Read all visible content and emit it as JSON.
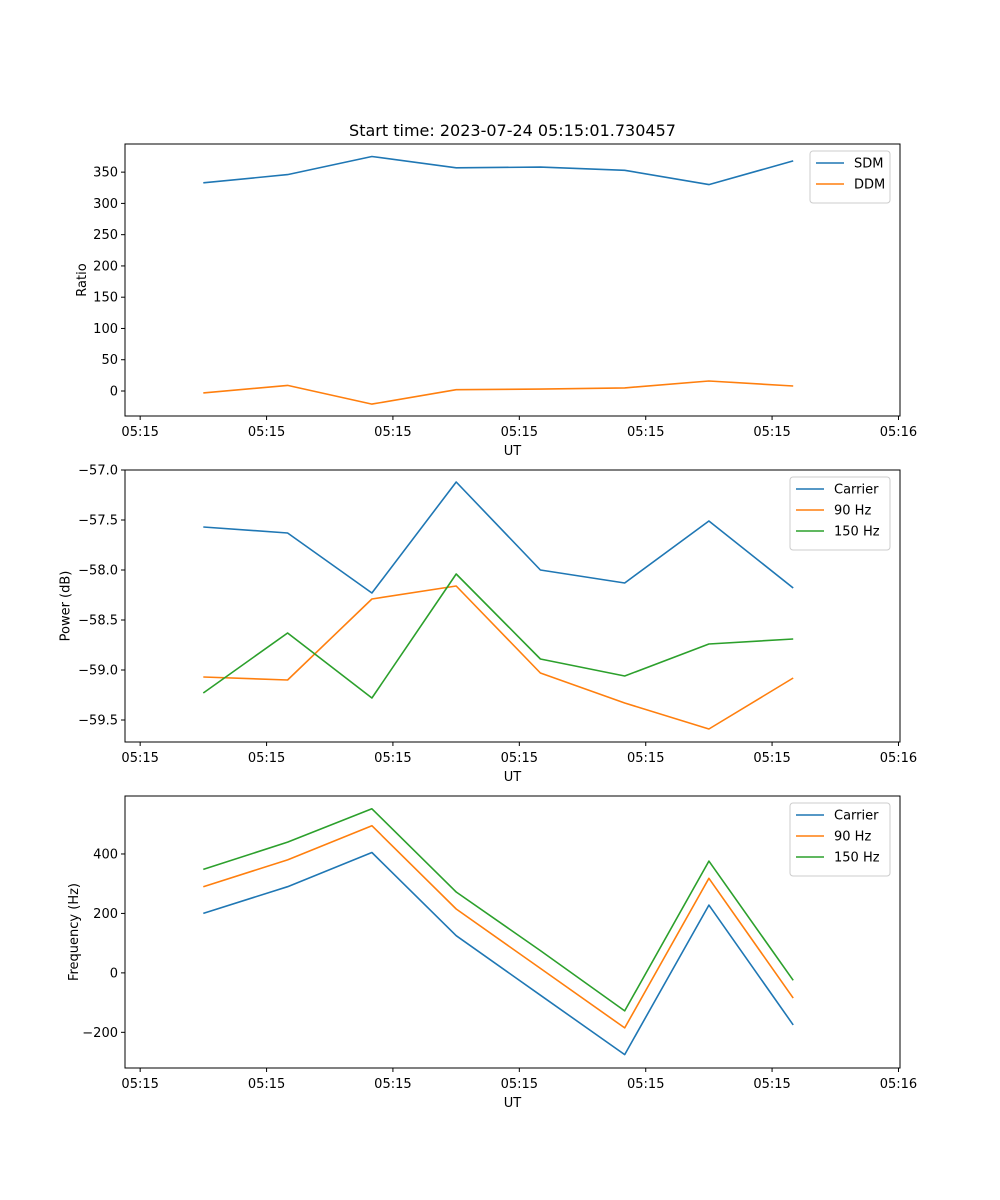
{
  "figure_title": "Start time: 2023-07-24 05:15:01.730457",
  "chart_data": [
    {
      "type": "line",
      "xlabel": "UT",
      "ylabel": "Ratio",
      "xlim": [
        0,
        1
      ],
      "x_ticks": [
        {
          "value": 0.0,
          "label": "05:15"
        },
        {
          "value": 0.1667,
          "label": "05:15"
        },
        {
          "value": 0.3333,
          "label": "05:15"
        },
        {
          "value": 0.5,
          "label": "05:15"
        },
        {
          "value": 0.6667,
          "label": "05:15"
        },
        {
          "value": 0.8333,
          "label": "05:15"
        },
        {
          "value": 1.0,
          "label": "05:16"
        }
      ],
      "x": [
        0.0833,
        0.1944,
        0.3056,
        0.4167,
        0.5278,
        0.6389,
        0.75,
        0.8611
      ],
      "ylim": [
        -40,
        395
      ],
      "y_ticks": [
        {
          "value": 0,
          "label": "0"
        },
        {
          "value": 50,
          "label": "50"
        },
        {
          "value": 100,
          "label": "100"
        },
        {
          "value": 150,
          "label": "150"
        },
        {
          "value": 200,
          "label": "200"
        },
        {
          "value": 250,
          "label": "250"
        },
        {
          "value": 300,
          "label": "300"
        },
        {
          "value": 350,
          "label": "350"
        }
      ],
      "series": [
        {
          "name": "SDM",
          "color": "#1f77b4",
          "values": [
            333,
            346,
            375,
            357,
            358,
            353,
            330,
            368
          ]
        },
        {
          "name": "DDM",
          "color": "#ff7f0e",
          "values": [
            -3,
            9,
            -21,
            2,
            3,
            5,
            16,
            8
          ]
        }
      ],
      "legend": "top-right"
    },
    {
      "type": "line",
      "xlabel": "UT",
      "ylabel": "Power (dB)",
      "xlim": [
        0,
        1
      ],
      "x_ticks": [
        {
          "value": 0.0,
          "label": "05:15"
        },
        {
          "value": 0.1667,
          "label": "05:15"
        },
        {
          "value": 0.3333,
          "label": "05:15"
        },
        {
          "value": 0.5,
          "label": "05:15"
        },
        {
          "value": 0.6667,
          "label": "05:15"
        },
        {
          "value": 0.8333,
          "label": "05:15"
        },
        {
          "value": 1.0,
          "label": "05:16"
        }
      ],
      "x": [
        0.0833,
        0.1944,
        0.3056,
        0.4167,
        0.5278,
        0.6389,
        0.75,
        0.8611
      ],
      "ylim": [
        -59.72,
        -57.0
      ],
      "y_ticks": [
        {
          "value": -59.5,
          "label": "−59.5"
        },
        {
          "value": -59.0,
          "label": "−59.0"
        },
        {
          "value": -58.5,
          "label": "−58.5"
        },
        {
          "value": -58.0,
          "label": "−58.0"
        },
        {
          "value": -57.5,
          "label": "−57.5"
        },
        {
          "value": -57.0,
          "label": "−57.0"
        }
      ],
      "series": [
        {
          "name": "Carrier",
          "color": "#1f77b4",
          "values": [
            -57.57,
            -57.63,
            -58.23,
            -57.12,
            -58.0,
            -58.13,
            -57.51,
            -58.18
          ]
        },
        {
          "name": "90 Hz",
          "color": "#ff7f0e",
          "values": [
            -59.07,
            -59.1,
            -58.29,
            -58.16,
            -59.03,
            -59.33,
            -59.59,
            -59.08
          ]
        },
        {
          "name": "150 Hz",
          "color": "#2ca02c",
          "values": [
            -59.23,
            -58.63,
            -59.28,
            -58.04,
            -58.89,
            -59.06,
            -58.74,
            -58.69
          ]
        }
      ],
      "legend": "top-right"
    },
    {
      "type": "line",
      "xlabel": "UT",
      "ylabel": "Frequency (Hz)",
      "xlim": [
        0,
        1
      ],
      "x_ticks": [
        {
          "value": 0.0,
          "label": "05:15"
        },
        {
          "value": 0.1667,
          "label": "05:15"
        },
        {
          "value": 0.3333,
          "label": "05:15"
        },
        {
          "value": 0.5,
          "label": "05:15"
        },
        {
          "value": 0.6667,
          "label": "05:15"
        },
        {
          "value": 0.8333,
          "label": "05:15"
        },
        {
          "value": 1.0,
          "label": "05:16"
        }
      ],
      "x": [
        0.0833,
        0.1944,
        0.3056,
        0.4167,
        0.5278,
        0.6389,
        0.75,
        0.8611
      ],
      "ylim": [
        -320,
        595
      ],
      "y_ticks": [
        {
          "value": -200,
          "label": "−200"
        },
        {
          "value": 0,
          "label": "0"
        },
        {
          "value": 200,
          "label": "200"
        },
        {
          "value": 400,
          "label": "400"
        }
      ],
      "series": [
        {
          "name": "Carrier",
          "color": "#1f77b4",
          "values": [
            200,
            290,
            405,
            125,
            -75,
            -275,
            228,
            -175
          ]
        },
        {
          "name": "90 Hz",
          "color": "#ff7f0e",
          "values": [
            290,
            380,
            495,
            215,
            15,
            -185,
            318,
            -85
          ]
        },
        {
          "name": "150 Hz",
          "color": "#2ca02c",
          "values": [
            348,
            440,
            552,
            272,
            75,
            -128,
            376,
            -25
          ]
        }
      ],
      "legend": "top-right"
    }
  ]
}
